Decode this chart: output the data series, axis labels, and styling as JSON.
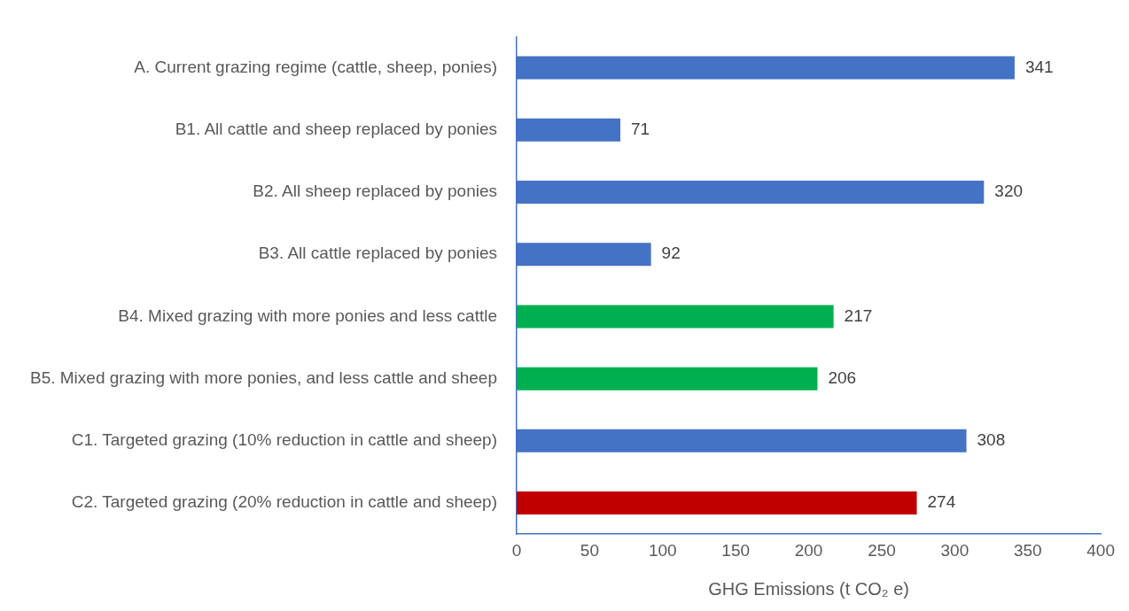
{
  "chart_data": {
    "type": "bar",
    "orientation": "horizontal",
    "xlabel": "GHG Emissions (t CO₂ e)",
    "categories": [
      "A. Current grazing regime (cattle, sheep, ponies)",
      "B1. All cattle and sheep replaced by ponies",
      "B2. All sheep replaced by ponies",
      "B3. All cattle replaced by ponies",
      "B4. Mixed grazing with more ponies and less cattle",
      "B5. Mixed grazing with more ponies, and less cattle and sheep",
      "C1. Targeted grazing (10% reduction in cattle and sheep)",
      "C2. Targeted grazing (20% reduction in cattle and sheep)"
    ],
    "values": [
      341,
      71,
      320,
      92,
      217,
      206,
      308,
      274
    ],
    "colors": [
      "#4472c4",
      "#4472c4",
      "#4472c4",
      "#4472c4",
      "#00b050",
      "#00b050",
      "#4472c4",
      "#c00000"
    ],
    "xlim": [
      0,
      400
    ],
    "xticks": [
      0,
      50,
      100,
      150,
      200,
      250,
      300,
      350,
      400
    ],
    "grid": false,
    "legend": false,
    "data_labels": true
  }
}
